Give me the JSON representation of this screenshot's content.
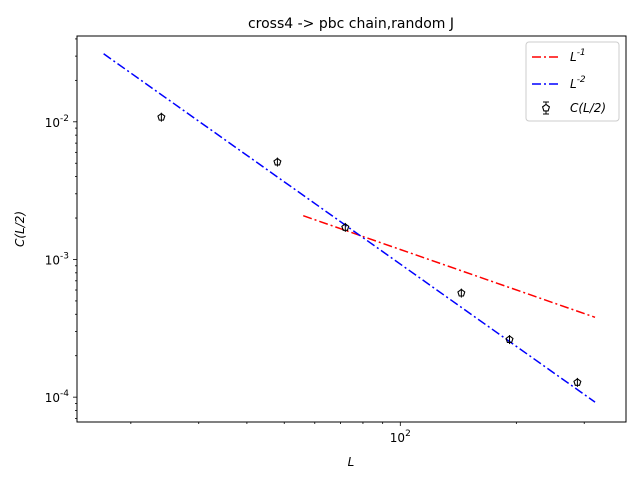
{
  "chart_data": {
    "type": "scatter",
    "title": "cross4 -> pbc chain,random J",
    "xlabel": "L",
    "ylabel": "C(L/2)",
    "xscale": "log",
    "yscale": "log",
    "xlim": [
      14.5,
      385
    ],
    "ylim": [
      6.6e-05,
      0.042
    ],
    "x_ticks": [
      {
        "value": 100,
        "label": "10^2"
      }
    ],
    "y_ticks": [
      {
        "value": 0.0001,
        "label": "10^-4"
      },
      {
        "value": 0.001,
        "label": "10^-3"
      },
      {
        "value": 0.01,
        "label": "10^-2"
      }
    ],
    "grid": false,
    "legend_position": "top-right",
    "series": [
      {
        "name": "L^-1",
        "kind": "line",
        "style": "dashdot",
        "color": "#ff0000",
        "x": [
          56,
          320
        ],
        "y": [
          0.00208,
          0.00038
        ]
      },
      {
        "name": "L^-2",
        "kind": "line",
        "style": "dashdot",
        "color": "#0000ff",
        "x": [
          17,
          320
        ],
        "y": [
          0.0312,
          9.2e-05
        ]
      },
      {
        "name": "C(L/2)",
        "kind": "errorbar",
        "marker": "pentagon",
        "color": "#000000",
        "x": [
          24,
          48,
          72,
          144,
          192,
          288
        ],
        "y": [
          0.0108,
          0.0051,
          0.00171,
          0.00057,
          0.000262,
          0.000128
        ]
      }
    ]
  }
}
